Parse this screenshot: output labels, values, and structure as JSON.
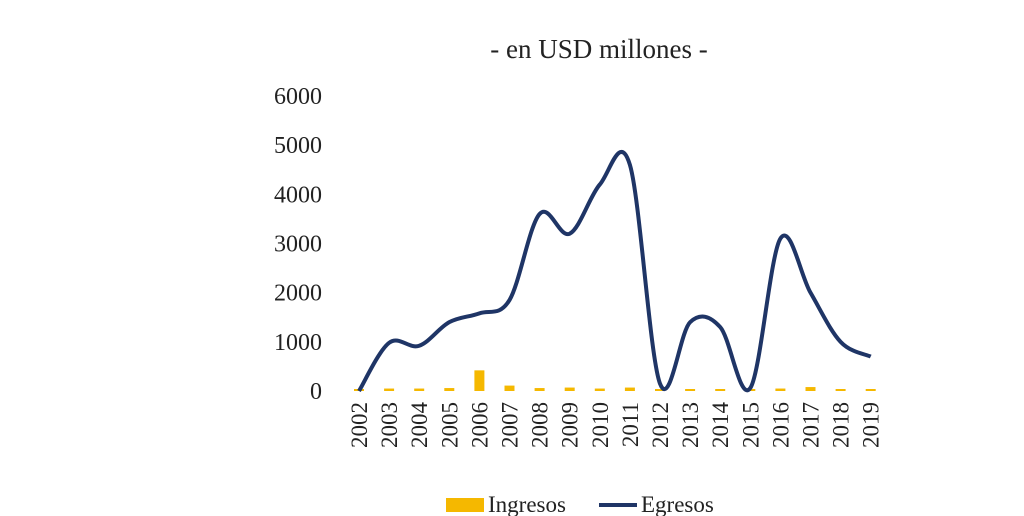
{
  "chart_data": {
    "type": "bar+line",
    "subtitle": "- en USD millones -",
    "categories": [
      "2002",
      "2003",
      "2004",
      "2005",
      "2006",
      "2007",
      "2008",
      "2009",
      "2010",
      "2011",
      "2012",
      "2013",
      "2014",
      "2015",
      "2016",
      "2017",
      "2018",
      "2019"
    ],
    "y_ticks": [
      "6000",
      "5000",
      "4000",
      "3000",
      "2000",
      "1000",
      "0"
    ],
    "ylim": [
      0,
      6000
    ],
    "grid": false,
    "legend_position": "bottom",
    "series": [
      {
        "name": "Ingresos",
        "kind": "bar",
        "color": "#f5b800",
        "values": [
          0,
          50,
          50,
          60,
          420,
          110,
          60,
          70,
          50,
          70,
          10,
          20,
          20,
          20,
          50,
          80,
          40,
          40
        ]
      },
      {
        "name": "Egresos",
        "kind": "line",
        "color": "#1f3566",
        "values": [
          0,
          980,
          920,
          1400,
          1580,
          1850,
          3600,
          3200,
          4200,
          4600,
          150,
          1400,
          1300,
          60,
          3100,
          2000,
          1000,
          700
        ]
      }
    ]
  }
}
